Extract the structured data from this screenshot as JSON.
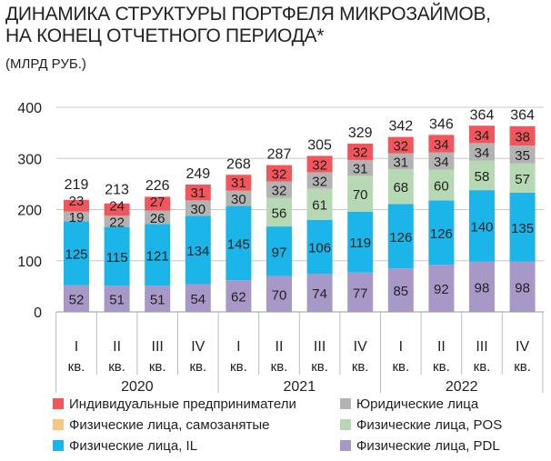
{
  "chart_data": {
    "type": "bar",
    "stacked": true,
    "title_lines": [
      "ДИНАМИКА СТРУКТУРЫ ПОРТФЕЛЯ МИКРОЗАЙМОВ,",
      "НА КОНЕЦ ОТЧЕТНОГО ПЕРИОДА*"
    ],
    "unit": "(МЛРД РУБ.)",
    "ylim": [
      0,
      400
    ],
    "yticks": [
      0,
      100,
      200,
      300,
      400
    ],
    "grid": true,
    "legend_position": "bottom",
    "categories": [
      "I",
      "II",
      "III",
      "IV",
      "I",
      "II",
      "III",
      "IV",
      "I",
      "II",
      "III",
      "IV"
    ],
    "quarter_suffix": "кв.",
    "years": [
      {
        "label": "2020",
        "span": 4
      },
      {
        "label": "2021",
        "span": 4
      },
      {
        "label": "2022",
        "span": 4
      }
    ],
    "totals": [
      219,
      213,
      226,
      249,
      268,
      287,
      305,
      329,
      342,
      346,
      364,
      364
    ],
    "series": [
      {
        "name": "Физические лица, PDL",
        "color": "#a898c8",
        "values": [
          52,
          51,
          51,
          54,
          62,
          70,
          74,
          77,
          85,
          92,
          98,
          98
        ]
      },
      {
        "name": "Физические лица, IL",
        "color": "#1cb5ea",
        "values": [
          125,
          115,
          121,
          134,
          145,
          97,
          106,
          119,
          126,
          126,
          140,
          135
        ]
      },
      {
        "name": "Физические лица, POS",
        "color": "#b6d8b2",
        "values": [
          0,
          0,
          0,
          0,
          0,
          56,
          61,
          70,
          68,
          60,
          58,
          57
        ]
      },
      {
        "name": "Физические лица, самозанятые",
        "color": "#f7c781",
        "values": [
          0,
          0,
          0,
          0,
          0,
          0,
          0,
          0,
          0,
          0,
          0,
          0
        ]
      },
      {
        "name": "Юридические лица",
        "color": "#b3b3b3",
        "values": [
          19,
          22,
          26,
          30,
          30,
          32,
          32,
          31,
          31,
          34,
          34,
          35
        ]
      },
      {
        "name": "Индивидуальные предприниматели",
        "color": "#f2555b",
        "values": [
          23,
          24,
          27,
          31,
          31,
          32,
          32,
          32,
          32,
          34,
          34,
          38
        ]
      }
    ],
    "legend_order": [
      "Индивидуальные предприниматели",
      "Юридические лица",
      "Физические лица, самозанятые",
      "Физические лица, POS",
      "Физические лица, IL",
      "Физические лица, PDL"
    ]
  }
}
